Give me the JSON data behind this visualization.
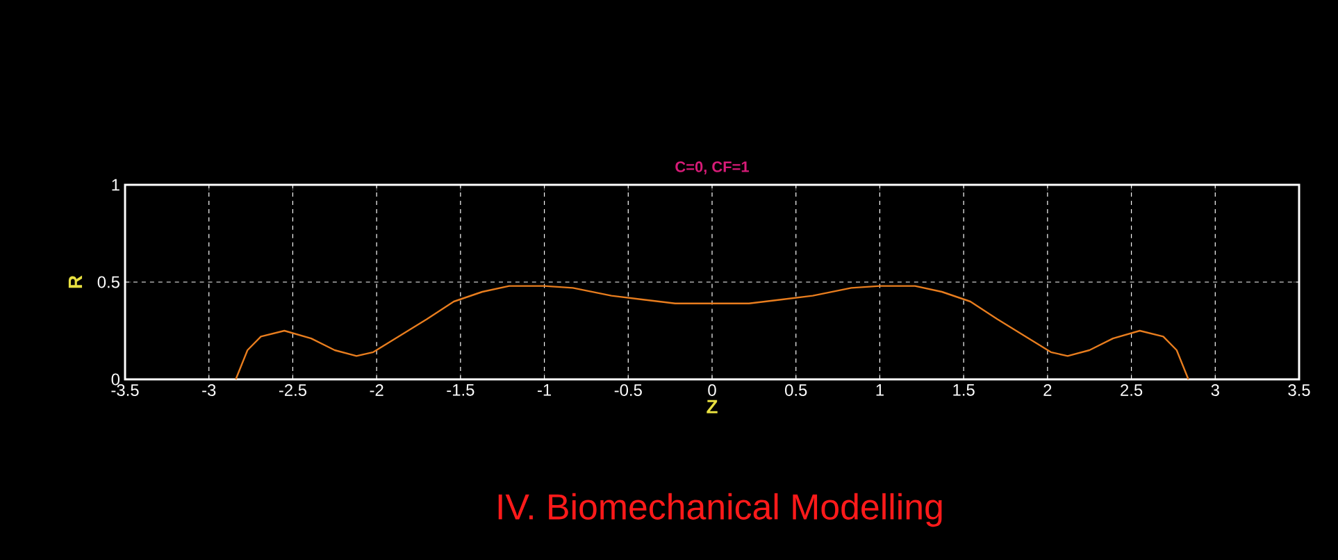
{
  "chart_data": {
    "type": "line",
    "title": "C=0, CF=1",
    "xlabel": "Z",
    "ylabel": "R",
    "annotations": [
      "IV. Biomechanical Modelling"
    ],
    "x": [
      -2.84,
      -2.77,
      -2.69,
      -2.55,
      -2.39,
      -2.25,
      -2.12,
      -2.02,
      -1.87,
      -1.7,
      -1.54,
      -1.37,
      -1.21,
      -1.0,
      -0.83,
      -0.6,
      -0.41,
      -0.22,
      0.0,
      0.22,
      0.41,
      0.6,
      0.83,
      1.0,
      1.21,
      1.37,
      1.54,
      1.7,
      1.87,
      2.02,
      2.12,
      2.25,
      2.39,
      2.55,
      2.69,
      2.77,
      2.84
    ],
    "series": [
      {
        "color": "#e87d1e",
        "values": [
          0.0,
          0.15,
          0.22,
          0.25,
          0.21,
          0.15,
          0.12,
          0.14,
          0.22,
          0.31,
          0.4,
          0.45,
          0.48,
          0.48,
          0.47,
          0.43,
          0.41,
          0.39,
          0.39,
          0.39,
          0.41,
          0.43,
          0.47,
          0.48,
          0.48,
          0.45,
          0.4,
          0.31,
          0.22,
          0.14,
          0.12,
          0.15,
          0.21,
          0.25,
          0.22,
          0.15,
          0.0
        ]
      }
    ],
    "xlim": [
      -3.5,
      3.5
    ],
    "ylim": [
      0,
      1
    ],
    "xticks": [
      -3.5,
      -3,
      -2.5,
      -2,
      -1.5,
      -1,
      -0.5,
      0,
      0.5,
      1,
      1.5,
      2,
      2.5,
      3,
      3.5
    ],
    "yticks": [
      0,
      0.5,
      1
    ],
    "grid": true
  }
}
